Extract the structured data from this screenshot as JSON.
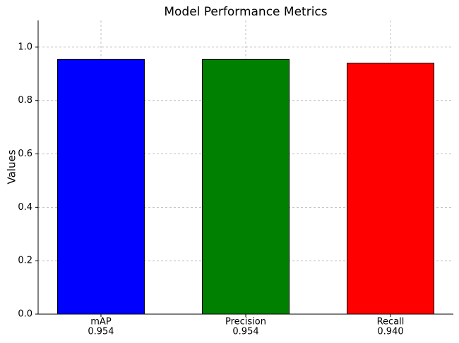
{
  "chart_data": {
    "type": "bar",
    "title": "Model Performance Metrics",
    "y_label": "Values",
    "categories": [
      "mAP",
      "Precision",
      "Recall"
    ],
    "values": [
      0.954,
      0.954,
      0.94
    ],
    "value_labels": [
      "0.954",
      "0.954",
      "0.940"
    ],
    "colors": [
      "#0000ff",
      "#008000",
      "#ff0000"
    ],
    "ylim": [
      0,
      1.1
    ],
    "yticks": [
      {
        "value": 0,
        "label": "0.0"
      },
      0.2,
      0.4,
      0.6,
      0.8,
      {
        "value": 1,
        "label": "1.0"
      }
    ],
    "grid": true
  }
}
